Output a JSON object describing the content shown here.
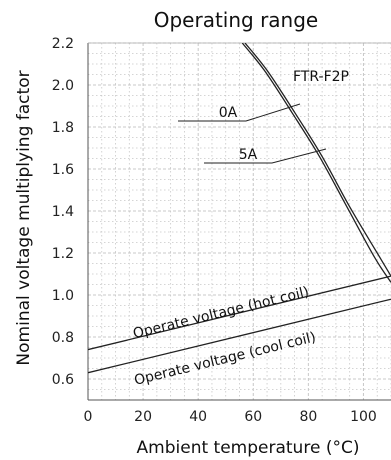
{
  "chart_data": {
    "type": "line",
    "title": "Operating range",
    "xlabel": "Ambient temperature (°C)",
    "ylabel": "Nominal voltage multiplying factor",
    "xlim": [
      0,
      110
    ],
    "ylim": [
      0.5,
      2.2
    ],
    "xticks": [
      0,
      20,
      40,
      60,
      80,
      100
    ],
    "xtick_labels": [
      "0",
      "20",
      "40",
      "60",
      "80",
      "100"
    ],
    "yticks": [
      0.6,
      0.8,
      1.0,
      1.2,
      1.4,
      1.6,
      1.8,
      2.0,
      2.2
    ],
    "ytick_labels": [
      "0.6",
      "0.8",
      "1.0",
      "1.2",
      "1.4",
      "1.6",
      "1.8",
      "2.0",
      "2.2"
    ],
    "grid": true,
    "series": [
      {
        "name": "0A",
        "x": [
          57,
          65,
          75,
          85,
          95,
          105,
          110
        ],
        "y": [
          2.2,
          2.07,
          1.87,
          1.66,
          1.42,
          1.2,
          1.09
        ]
      },
      {
        "name": "5A",
        "x": [
          56,
          64,
          74,
          84,
          94,
          104,
          110
        ],
        "y": [
          2.2,
          2.07,
          1.87,
          1.66,
          1.42,
          1.18,
          1.06
        ]
      },
      {
        "name": "Operate voltage (hot coil)",
        "x": [
          0,
          110
        ],
        "y": [
          0.74,
          1.09
        ]
      },
      {
        "name": "Operate voltage (cool coil)",
        "x": [
          0,
          110
        ],
        "y": [
          0.63,
          0.98
        ]
      }
    ],
    "annotations": {
      "product": "FTR-F2P",
      "label_0a": "0A",
      "label_5a": "5A",
      "label_hot": "Operate voltage (hot coil)",
      "label_cool": "Operate voltage (cool coil)"
    }
  }
}
